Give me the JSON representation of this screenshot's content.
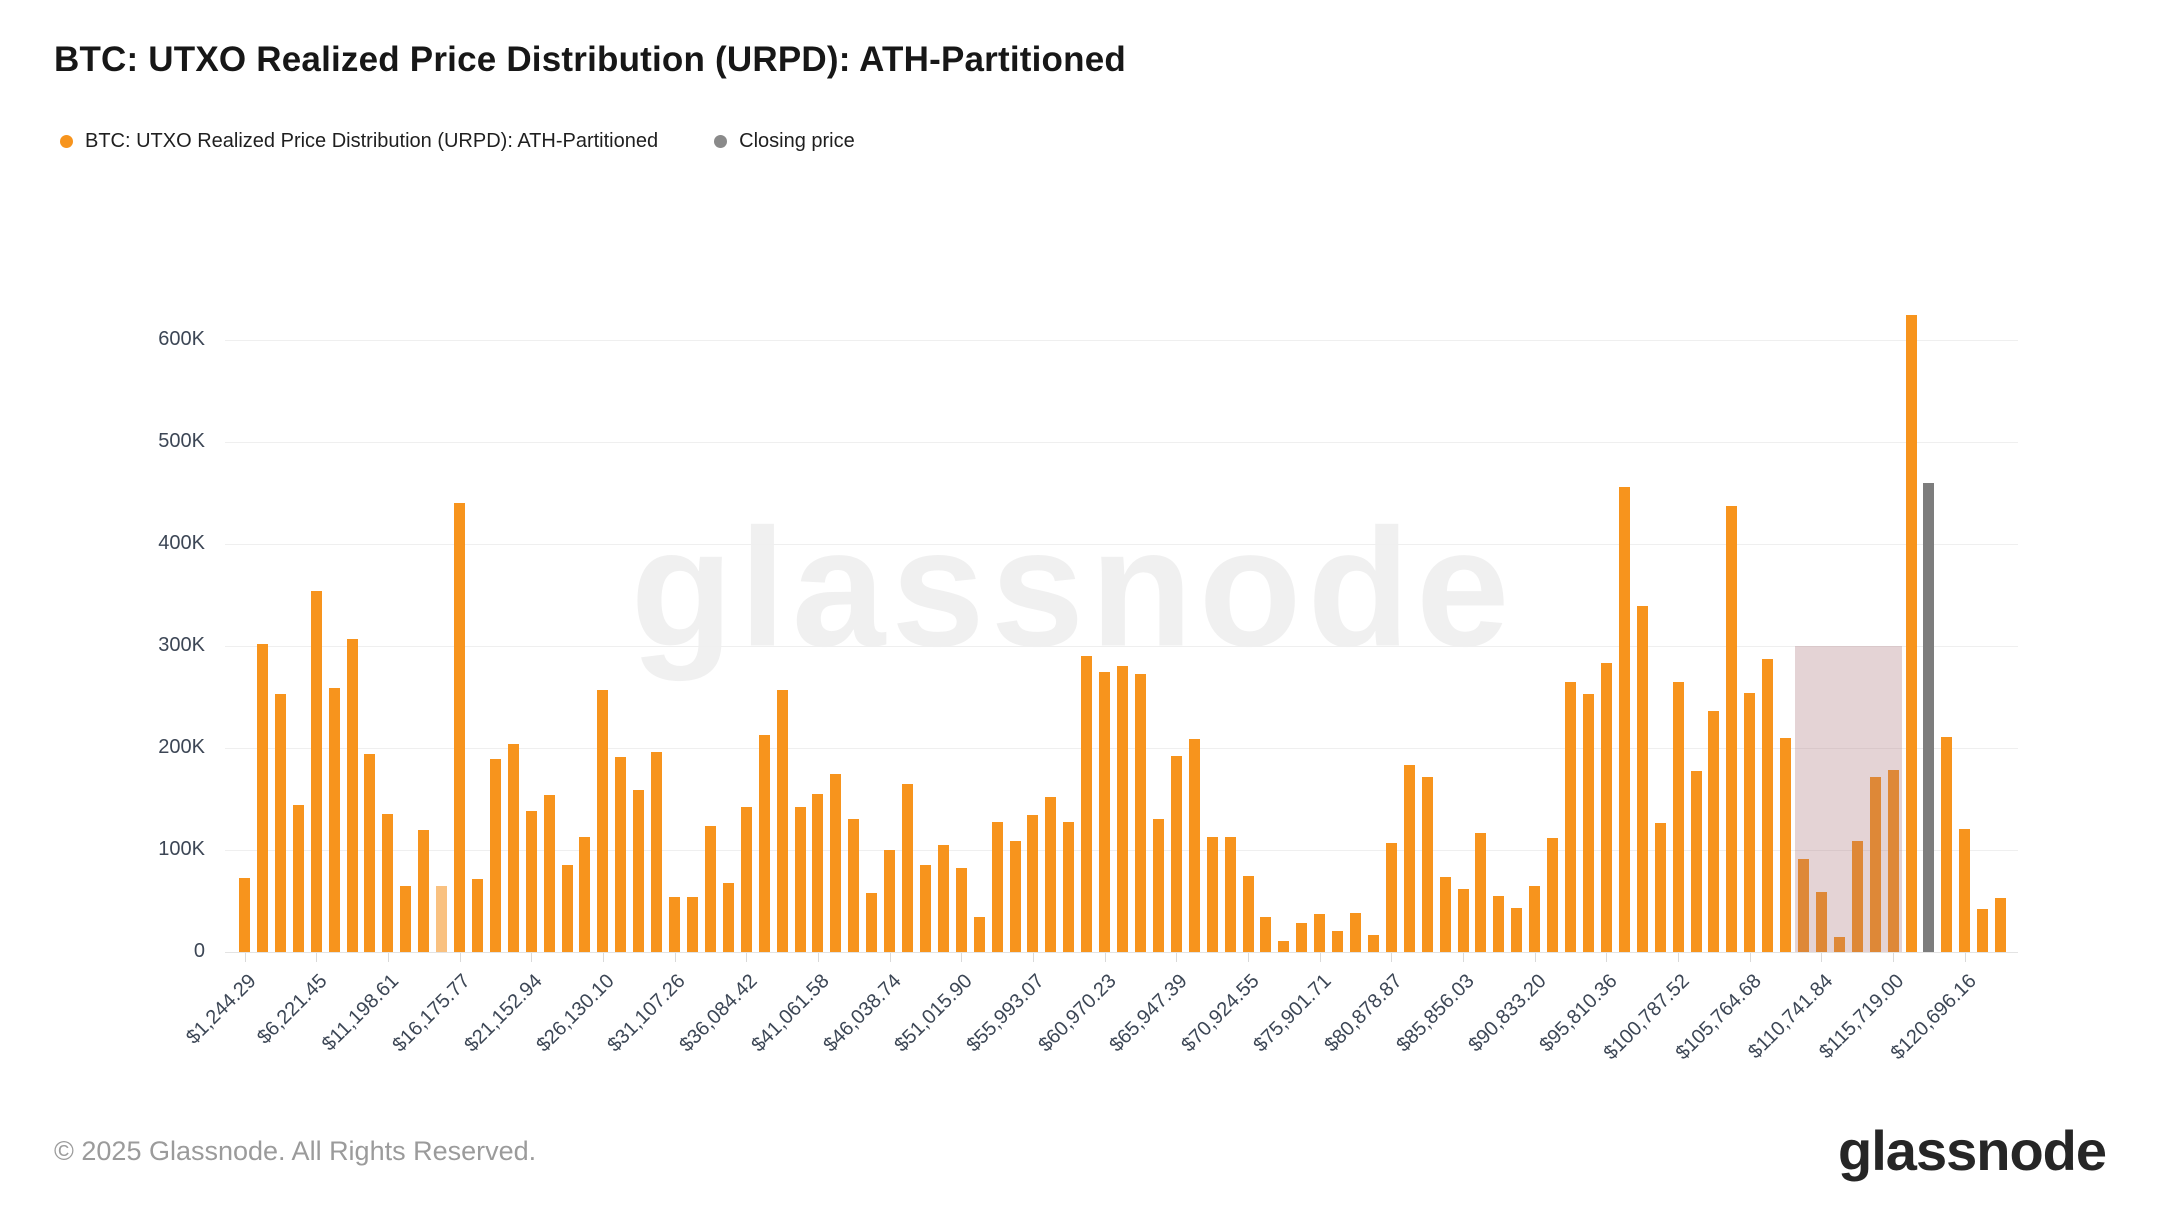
{
  "header": {
    "title": "BTC: UTXO Realized Price Distribution (URPD): ATH-Partitioned"
  },
  "legend": [
    {
      "label": "BTC: UTXO Realized Price Distribution (URPD): ATH-Partitioned",
      "color": "#f7941d"
    },
    {
      "label": "Closing price",
      "color": "#8a8a8a"
    }
  ],
  "footer": {
    "copyright": "© 2025 Glassnode. All Rights Reserved.",
    "logo_text": "glassnode"
  },
  "watermark_text": "glassnode",
  "chart_data": {
    "type": "bar",
    "title": "BTC: UTXO Realized Price Distribution (URPD): ATH-Partitioned",
    "ylabel": "",
    "xlabel": "",
    "ylim": [
      0,
      650000
    ],
    "grid": "horizontal",
    "legend_position": "top-left",
    "y_ticks": [
      {
        "value": 0,
        "label": "0"
      },
      {
        "value": 100000,
        "label": "100K"
      },
      {
        "value": 200000,
        "label": "200K"
      },
      {
        "value": 300000,
        "label": "300K"
      },
      {
        "value": 400000,
        "label": "400K"
      },
      {
        "value": 500000,
        "label": "500K"
      },
      {
        "value": 600000,
        "label": "600K"
      }
    ],
    "x_tick_labels": [
      "$1,244.29",
      "$6,221.45",
      "$11,198.61",
      "$16,175.77",
      "$21,152.94",
      "$26,130.10",
      "$31,107.26",
      "$36,084.42",
      "$41,061.58",
      "$46,038.74",
      "$51,015.90",
      "$55,993.07",
      "$60,970.23",
      "$65,947.39",
      "$70,924.55",
      "$75,901.71",
      "$80,878.87",
      "$85,856.03",
      "$90,833.20",
      "$95,810.36",
      "$100,787.52",
      "$105,764.68",
      "$110,741.84",
      "$115,719.00",
      "$120,696.16"
    ],
    "x_tick_step_bins": 4,
    "bin_width_usd": 1244.29,
    "values": [
      73000,
      302000,
      253000,
      144000,
      354000,
      259000,
      307000,
      194000,
      135000,
      65000,
      120000,
      65000,
      440000,
      72000,
      189000,
      204000,
      138000,
      154000,
      85000,
      113000,
      257000,
      191000,
      159000,
      196000,
      54000,
      54000,
      124000,
      68000,
      142000,
      213000,
      257000,
      142000,
      155000,
      175000,
      130000,
      58000,
      100000,
      165000,
      85000,
      105000,
      82000,
      34000,
      127000,
      109000,
      134000,
      152000,
      127000,
      290000,
      275000,
      280000,
      273000,
      130000,
      192000,
      209000,
      113000,
      113000,
      75000,
      34000,
      11000,
      28000,
      37000,
      21000,
      38000,
      17000,
      107000,
      183000,
      172000,
      74000,
      62000,
      117000,
      55000,
      43000,
      65000,
      112000,
      265000,
      253000,
      283000,
      456000,
      339000,
      126000,
      265000,
      177000,
      236000,
      437000,
      254000,
      287000,
      210000,
      91000,
      59000,
      15000,
      109000,
      172000,
      178000,
      625000,
      460000,
      211000,
      121000,
      42000,
      53000
    ],
    "closing_price_bar_index": 94,
    "closing_price_bar_value": 460000,
    "light_bar_index": 11,
    "shaded_region": {
      "from_bin": 87,
      "to_bin": 92,
      "top_value": 300000,
      "color": "rgba(167,109,117,0.30)"
    },
    "series_colors": {
      "urpd": "#f7941d",
      "urpd_light": "#f9c180",
      "closing_price": "#7d7d7d"
    }
  }
}
